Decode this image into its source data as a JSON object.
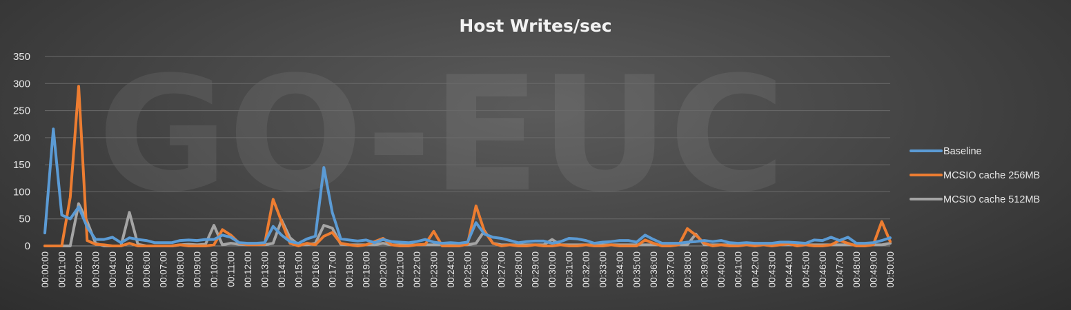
{
  "watermark": "GO-EUC",
  "chart_data": {
    "type": "line",
    "title": "Host Writes/sec",
    "xlabel": "",
    "ylabel": "",
    "ylim": [
      0,
      350
    ],
    "yticks": [
      0,
      50,
      100,
      150,
      200,
      250,
      300,
      350
    ],
    "grid": true,
    "legend_position": "right",
    "categories": [
      "00:00:00",
      "00:00:30",
      "00:01:00",
      "00:01:30",
      "00:02:00",
      "00:02:30",
      "00:03:00",
      "00:03:30",
      "00:04:00",
      "00:04:30",
      "00:05:00",
      "00:05:30",
      "00:06:00",
      "00:06:30",
      "00:07:00",
      "00:07:30",
      "00:08:00",
      "00:08:30",
      "00:09:00",
      "00:09:30",
      "00:10:00",
      "00:10:30",
      "00:11:00",
      "00:11:30",
      "00:12:00",
      "00:12:30",
      "00:13:00",
      "00:13:30",
      "00:14:00",
      "00:14:30",
      "00:15:00",
      "00:15:30",
      "00:16:00",
      "00:16:30",
      "00:17:00",
      "00:17:30",
      "00:18:00",
      "00:18:30",
      "00:19:00",
      "00:19:30",
      "00:20:00",
      "00:20:30",
      "00:21:00",
      "00:21:30",
      "00:22:00",
      "00:22:30",
      "00:23:00",
      "00:23:30",
      "00:24:00",
      "00:24:30",
      "00:25:00",
      "00:25:30",
      "00:26:00",
      "00:26:30",
      "00:27:00",
      "00:27:30",
      "00:28:00",
      "00:28:30",
      "00:29:00",
      "00:29:30",
      "00:30:00",
      "00:30:30",
      "00:31:00",
      "00:31:30",
      "00:32:00",
      "00:32:30",
      "00:33:00",
      "00:33:30",
      "00:34:00",
      "00:34:30",
      "00:35:00",
      "00:35:30",
      "00:36:00",
      "00:36:30",
      "00:37:00",
      "00:37:30",
      "00:38:00",
      "00:38:30",
      "00:39:00",
      "00:39:30",
      "00:40:00",
      "00:40:30",
      "00:41:00",
      "00:41:30",
      "00:42:00",
      "00:42:30",
      "00:43:00",
      "00:43:30",
      "00:44:00",
      "00:44:30",
      "00:45:00",
      "00:45:30",
      "00:46:00",
      "00:46:30",
      "00:47:00",
      "00:47:30",
      "00:48:00",
      "00:48:30",
      "00:49:00",
      "00:49:30",
      "00:50:00"
    ],
    "visible_tick_labels": [
      "00:00:00",
      "00:01:00",
      "00:02:00",
      "00:03:00",
      "00:04:00",
      "00:05:00",
      "00:06:00",
      "00:07:00",
      "00:08:00",
      "00:09:00",
      "00:10:00",
      "00:11:00",
      "00:12:00",
      "00:13:00",
      "00:14:00",
      "00:15:00",
      "00:16:00",
      "00:17:00",
      "00:18:00",
      "00:19:00",
      "00:20:00",
      "00:21:00",
      "00:22:00",
      "00:23:00",
      "00:24:00",
      "00:25:00",
      "00:26:00",
      "00:27:00",
      "00:28:00",
      "00:29:00",
      "00:30:00",
      "00:31:00",
      "00:32:00",
      "00:33:00",
      "00:34:00",
      "00:35:00",
      "00:36:00",
      "00:37:00",
      "00:38:00",
      "00:39:00",
      "00:40:00",
      "00:41:00",
      "00:42:00",
      "00:43:00",
      "00:44:00",
      "00:45:00",
      "00:46:00",
      "00:47:00",
      "00:48:00",
      "00:49:00",
      "00:50:00"
    ],
    "series": [
      {
        "name": "Baseline",
        "color": "#5b9bd5",
        "values": [
          24,
          216,
          57,
          50,
          72,
          35,
          12,
          12,
          16,
          6,
          15,
          12,
          10,
          6,
          6,
          6,
          10,
          11,
          10,
          12,
          12,
          20,
          16,
          6,
          5,
          5,
          6,
          36,
          20,
          8,
          5,
          13,
          18,
          145,
          62,
          13,
          11,
          9,
          11,
          6,
          12,
          8,
          7,
          6,
          8,
          12,
          7,
          5,
          6,
          5,
          7,
          43,
          22,
          16,
          14,
          10,
          6,
          8,
          9,
          9,
          5,
          8,
          14,
          13,
          10,
          5,
          7,
          8,
          10,
          10,
          7,
          20,
          12,
          5,
          5,
          5,
          7,
          8,
          10,
          8,
          10,
          6,
          5,
          6,
          5,
          5,
          5,
          7,
          7,
          6,
          5,
          11,
          10,
          16,
          10,
          16,
          5,
          5,
          6,
          10,
          15
        ]
      },
      {
        "name": "MCSIO cache 256MB",
        "color": "#ed7d31",
        "values": [
          0,
          0,
          0,
          90,
          295,
          10,
          3,
          2,
          0,
          0,
          5,
          0,
          0,
          0,
          0,
          0,
          2,
          0,
          0,
          0,
          2,
          30,
          20,
          5,
          2,
          2,
          3,
          86,
          45,
          5,
          0,
          5,
          2,
          18,
          25,
          5,
          2,
          0,
          2,
          8,
          14,
          2,
          0,
          0,
          2,
          3,
          27,
          0,
          0,
          0,
          3,
          74,
          27,
          5,
          0,
          2,
          0,
          0,
          2,
          0,
          0,
          2,
          0,
          0,
          2,
          0,
          0,
          2,
          0,
          0,
          0,
          11,
          5,
          0,
          0,
          2,
          32,
          20,
          5,
          0,
          2,
          0,
          0,
          2,
          0,
          2,
          0,
          2,
          4,
          0,
          2,
          0,
          0,
          2,
          10,
          5,
          0,
          0,
          2,
          45,
          8
        ]
      },
      {
        "name": "MCSIO cache 512MB",
        "color": "#a5a5a5",
        "values": [
          0,
          0,
          0,
          0,
          78,
          45,
          5,
          0,
          0,
          0,
          62,
          3,
          0,
          0,
          0,
          0,
          2,
          3,
          2,
          3,
          38,
          2,
          5,
          3,
          2,
          2,
          2,
          5,
          48,
          15,
          2,
          2,
          5,
          38,
          33,
          3,
          2,
          2,
          2,
          2,
          5,
          2,
          2,
          2,
          2,
          2,
          2,
          2,
          2,
          2,
          2,
          5,
          28,
          5,
          2,
          2,
          2,
          2,
          2,
          2,
          12,
          2,
          2,
          2,
          2,
          2,
          2,
          2,
          2,
          2,
          2,
          2,
          2,
          2,
          2,
          2,
          2,
          22,
          2,
          2,
          2,
          2,
          2,
          2,
          2,
          2,
          2,
          2,
          2,
          2,
          2,
          2,
          2,
          2,
          2,
          2,
          2,
          2,
          2,
          2,
          5
        ]
      }
    ]
  }
}
